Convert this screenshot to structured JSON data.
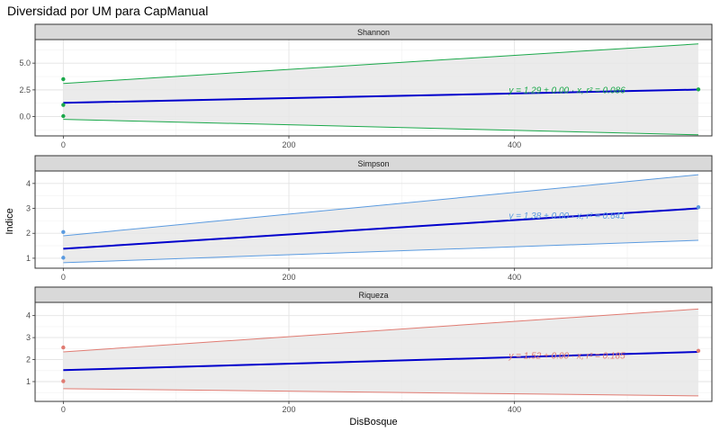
{
  "title": "Diversidad por UM para CapManual",
  "chart_data": {
    "type": "scatter",
    "xlabel": "DisBosque",
    "ylabel": "Indice",
    "xlim": [
      -25,
      575
    ],
    "x_ticks": [
      "0",
      "200",
      "400"
    ],
    "x_tick_values": [
      0,
      200,
      400
    ],
    "regression_color": "#0000cc",
    "band_fill": "#e8e8e8",
    "panels": [
      {
        "name": "Shannon",
        "color": "#1aa84a",
        "ylim": [
          -1.8,
          7.2
        ],
        "y_ticks": [
          "0.0",
          "2.5",
          "5.0"
        ],
        "y_tick_values": [
          0,
          2.5,
          5
        ],
        "points": [
          [
            0,
            3.5
          ],
          [
            0,
            1.1
          ],
          [
            0,
            0.05
          ],
          [
            563,
            2.55
          ]
        ],
        "fit": [
          [
            0,
            1.29
          ],
          [
            563,
            2.53
          ]
        ],
        "upper": [
          [
            0,
            3.1
          ],
          [
            563,
            6.8
          ]
        ],
        "lower": [
          [
            0,
            -0.25
          ],
          [
            563,
            -1.7
          ]
        ],
        "eq_x": 395,
        "eq_y": 2.2,
        "equation": "y = 1.29 + 0.00 · x,  r² = 0.086"
      },
      {
        "name": "Simpson",
        "color": "#5b9be0",
        "ylim": [
          0.6,
          4.5
        ],
        "y_ticks": [
          "1",
          "2",
          "3",
          "4"
        ],
        "y_tick_values": [
          1,
          2,
          3,
          4
        ],
        "points": [
          [
            0,
            2.05
          ],
          [
            0,
            1.02
          ],
          [
            563,
            3.05
          ]
        ],
        "fit": [
          [
            0,
            1.38
          ],
          [
            563,
            3.0
          ]
        ],
        "upper": [
          [
            0,
            1.9
          ],
          [
            563,
            4.35
          ]
        ],
        "lower": [
          [
            0,
            0.82
          ],
          [
            563,
            1.72
          ]
        ],
        "eq_x": 395,
        "eq_y": 2.58,
        "equation": "y = 1.38 + 0.00 · x,  r² = 0.641"
      },
      {
        "name": "Riqueza",
        "color": "#e07b72",
        "ylim": [
          0.1,
          4.6
        ],
        "y_ticks": [
          "1",
          "2",
          "3",
          "4"
        ],
        "y_tick_values": [
          1,
          2,
          3,
          4
        ],
        "points": [
          [
            0,
            2.55
          ],
          [
            0,
            1.02
          ],
          [
            563,
            2.4
          ]
        ],
        "fit": [
          [
            0,
            1.52
          ],
          [
            563,
            2.35
          ]
        ],
        "upper": [
          [
            0,
            2.35
          ],
          [
            563,
            4.3
          ]
        ],
        "lower": [
          [
            0,
            0.68
          ],
          [
            563,
            0.35
          ]
        ],
        "eq_x": 395,
        "eq_y": 2.05,
        "equation": "y = 1.52 + 0.00 · x,  r² = 0.185"
      }
    ]
  }
}
